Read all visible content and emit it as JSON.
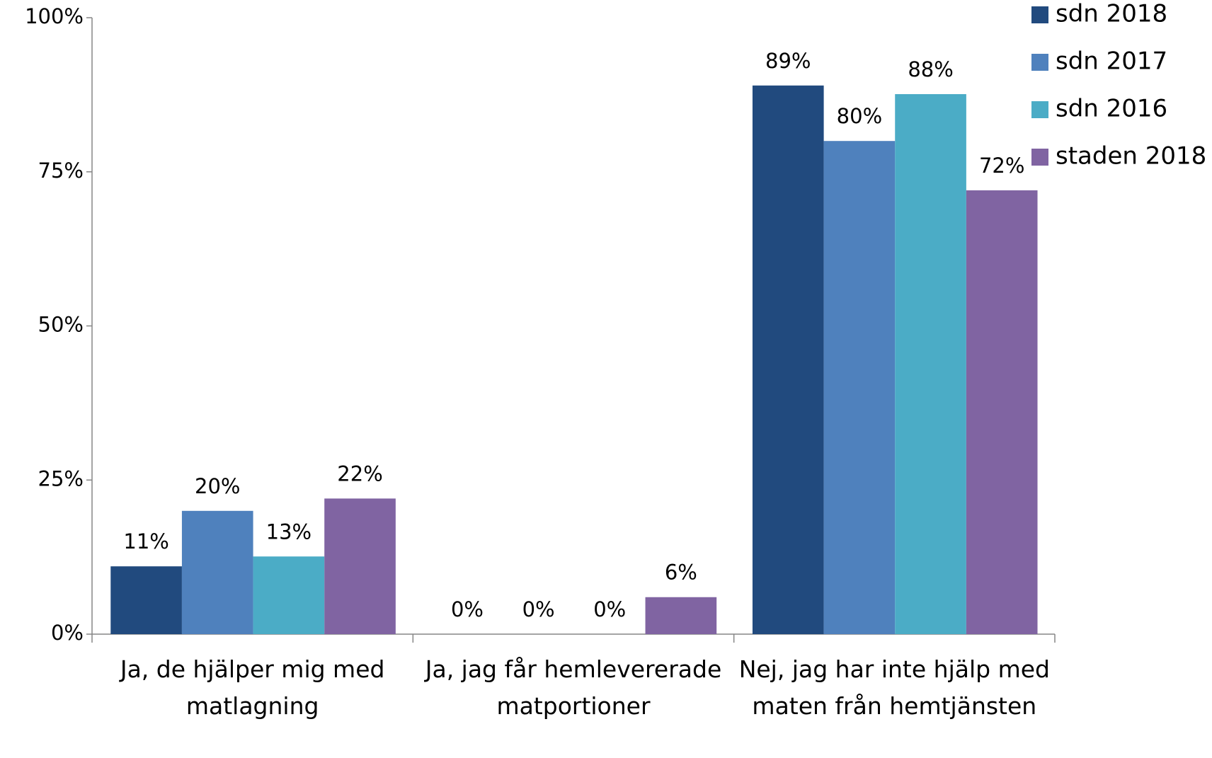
{
  "chart_data": {
    "type": "bar",
    "categories": [
      "Ja, de hjälper mig med matlagning",
      "Ja, jag får hemlevererade matportioner",
      "Nej, jag har inte hjälp med maten från hemtjänsten"
    ],
    "series": [
      {
        "name": "sdn 2018",
        "color": "#214a7e",
        "values": [
          11,
          0,
          89
        ],
        "value_labels": [
          "11%",
          "0%",
          "89%"
        ]
      },
      {
        "name": "sdn 2017",
        "color": "#4f81bd",
        "values": [
          20,
          0,
          80
        ],
        "value_labels": [
          "20%",
          "0%",
          "80%"
        ]
      },
      {
        "name": "sdn 2016",
        "color": "#4bacc6",
        "values": [
          12.6,
          0,
          87.6
        ],
        "value_labels": [
          "13%",
          "0%",
          "88%"
        ]
      },
      {
        "name": "staden 2018",
        "color": "#8064a2",
        "values": [
          22,
          6,
          72
        ],
        "value_labels": [
          "22%",
          "6%",
          "72%"
        ]
      }
    ],
    "ylim": [
      0,
      100
    ],
    "yticks": [
      {
        "value": 0,
        "label": "0%"
      },
      {
        "value": 25,
        "label": "25%"
      },
      {
        "value": 50,
        "label": "50%"
      },
      {
        "value": 75,
        "label": "75%"
      },
      {
        "value": 100,
        "label": "100%"
      }
    ],
    "grid": false,
    "legend": "top-right"
  }
}
